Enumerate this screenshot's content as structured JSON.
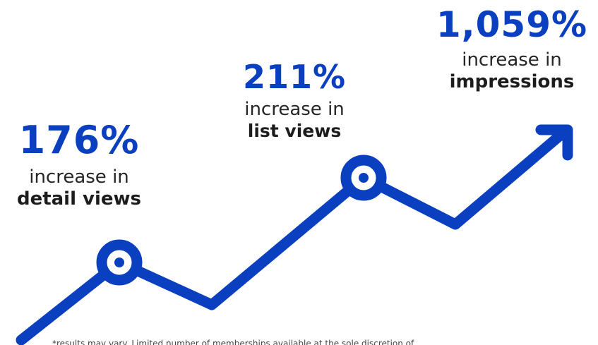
{
  "colors": {
    "accent": "#0a3fbf",
    "text": "#262626",
    "background": "#ffffff"
  },
  "graphic": {
    "line": "trend-line",
    "markers": [
      "ring-marker",
      "ring-marker"
    ],
    "arrowhead": "arrow-up-right-icon"
  },
  "stats": [
    {
      "percent": "176%",
      "lead": "increase in",
      "metric": "detail views"
    },
    {
      "percent": "211%",
      "lead": "increase in",
      "metric": "list views"
    },
    {
      "percent": "1,059%",
      "lead": "increase in",
      "metric": "impressions"
    }
  ],
  "disclaimer": "*results may vary. Limited number of memberships available at the sole discretion of"
}
